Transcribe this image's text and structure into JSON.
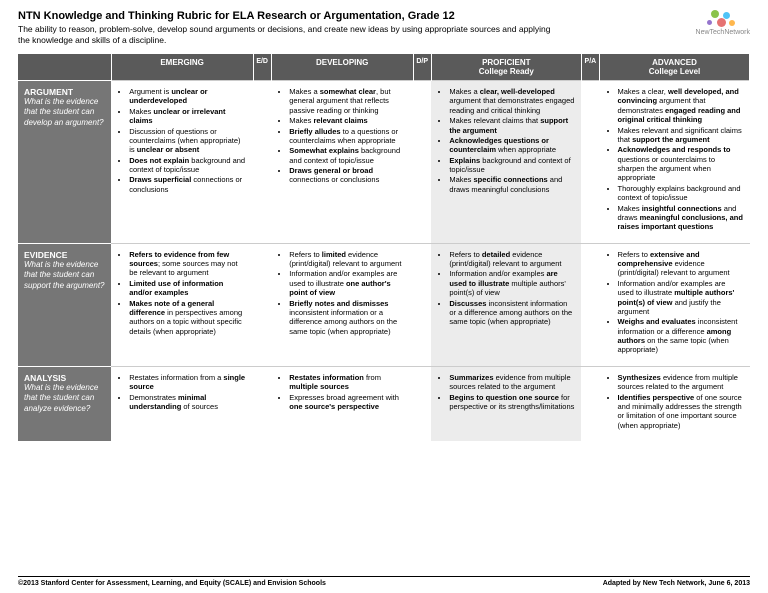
{
  "title": "NTN Knowledge and Thinking Rubric for ELA Research or Argumentation, Grade 12",
  "subtitle": "The ability to reason, problem-solve, develop sound arguments or decisions, and create new ideas by using appropriate sources and applying the knowledge and skills of a discipline.",
  "logo_text": "NewTechNetwork",
  "logo_colors": {
    "green": "#8bc34a",
    "blue": "#4fc3f7",
    "red": "#e57373",
    "orange": "#ffb74d",
    "purple": "#9575cd"
  },
  "columns": {
    "emerging": {
      "label": "EMERGING"
    },
    "ed": {
      "label": "E/D"
    },
    "developing": {
      "label": "DEVELOPING"
    },
    "dp": {
      "label": "D/P"
    },
    "proficient": {
      "label": "PROFICIENT",
      "sub": "College Ready"
    },
    "pa": {
      "label": "P/A"
    },
    "advanced": {
      "label": "ADVANCED",
      "sub": "College Level"
    }
  },
  "rows": [
    {
      "category": "Argument",
      "question": "What is the evidence that the student can develop an argument?",
      "emerging": [
        "Argument is <b>unclear or underdeveloped</b>",
        "Makes <b>unclear or irrelevant claims</b>",
        "Discussion of questions or counterclaims (when appropriate) is <b>unclear or absent</b>",
        "<b>Does not explain</b> background and context of topic/issue",
        "<b>Draws superficial</b> connections or conclusions"
      ],
      "developing": [
        "Makes a <b>somewhat clear</b>, but general argument that reflects passive reading or thinking",
        "Makes <b>relevant claims</b>",
        "<b>Briefly alludes</b> to a questions or counterclaims when appropriate",
        "<b>Somewhat explains</b> background and context of topic/issue",
        "<b>Draws general or broad</b> connections or conclusions"
      ],
      "proficient": [
        "Makes a <b>clear, well-developed</b> argument that demonstrates engaged reading and critical thinking",
        "Makes relevant claims that <b>support the argument</b>",
        "<b>Acknowledges questions or counterclaim</b> when appropriate",
        "<b>Explains</b> background and context of topic/issue",
        "Makes <b>specific connections</b> and draws meaningful conclusions"
      ],
      "advanced": [
        "Makes a clear, <b>well developed, and convincing</b> argument that demonstrates <b>engaged reading and original critical thinking</b>",
        "Makes relevant and significant claims that <b>support the argument</b>",
        "<b>Acknowledges and responds to</b> questions or counterclaims to sharpen the argument when appropriate",
        "Thoroughly explains background and context of topic/issue",
        "Makes <b>insightful connections</b> and draws <b>meaningful conclusions, and raises important questions</b>"
      ]
    },
    {
      "category": "Evidence",
      "question": "What is the evidence that the student can support the argument?",
      "emerging": [
        "<b>Refers to evidence from few sources</b>; some sources may not be relevant to argument",
        "<b>Limited use of information and/or examples</b>",
        "<b>Makes note of a general difference</b> in perspectives among authors on a topic without specific details (when appropriate)"
      ],
      "developing": [
        "Refers to <b>limited</b> evidence (print/digital) relevant to argument",
        "Information and/or examples are used to illustrate <b>one author's point of view</b>",
        "<b>Briefly notes and dismisses</b> inconsistent information or a difference among authors on the same topic (when appropriate)"
      ],
      "proficient": [
        "Refers to <b>detailed</b> evidence (print/digital) relevant to argument",
        "Information and/or examples <b>are used to illustrate</b> multiple authors' point(s) of view",
        "<b>Discusses</b> inconsistent information or a difference among authors on the same topic (when appropriate)"
      ],
      "advanced": [
        "Refers to <b>extensive and comprehensive</b> evidence (print/digital) relevant to argument",
        "Information and/or examples are used to illustrate <b>multiple authors' point(s) of view</b> and justify the argument",
        "<b>Weighs and evaluates</b> inconsistent information or a difference <b>among authors</b> on the same topic (when appropriate)"
      ]
    },
    {
      "category": "Analysis",
      "question": "What is the evidence that the student can analyze evidence?",
      "emerging": [
        "Restates information from a <b>single source</b>",
        "Demonstrates <b>minimal understanding</b> of sources"
      ],
      "developing": [
        "<b>Restates information</b> from <b>multiple sources</b>",
        "Expresses broad agreement with <b>one source's perspective</b>"
      ],
      "proficient": [
        "<b>Summarizes</b> evidence from multiple sources related to the argument",
        "<b>Begins to question one source</b> for perspective or its strengths/limitations"
      ],
      "advanced": [
        "<b>Synthesizes</b> evidence from multiple sources related to the argument",
        "<b>Identifies perspective</b> of one source and minimally addresses the strength or limitation of one important source (when appropriate)"
      ]
    }
  ],
  "footer": {
    "left": "©2013 Stanford Center for Assessment, Learning, and Equity (SCALE) and Envision Schools",
    "right": "Adapted by New Tech Network, June 6, 2013"
  }
}
